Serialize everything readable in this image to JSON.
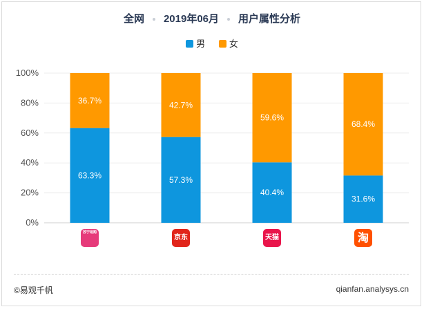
{
  "header": {
    "part1": "全网",
    "part2": "2019年06月",
    "part3": "用户属性分析"
  },
  "legend": [
    {
      "label": "男",
      "color": "#0e96de"
    },
    {
      "label": "女",
      "color": "#ff9900"
    }
  ],
  "chart_data": {
    "type": "bar",
    "stacked": true,
    "title": "全网 2019年06月 用户属性分析",
    "categories": [
      "苏宁易购",
      "京东",
      "天猫",
      "淘宝"
    ],
    "series": [
      {
        "name": "男",
        "values": [
          63.3,
          57.3,
          40.4,
          31.6
        ],
        "labels": [
          "63.3%",
          "57.3%",
          "40.4%",
          "31.6%"
        ],
        "color": "#0e96de"
      },
      {
        "name": "女",
        "values": [
          36.7,
          42.7,
          59.6,
          68.4
        ],
        "labels": [
          "36.7%",
          "42.7%",
          "59.6%",
          "68.4%"
        ],
        "color": "#ff9900"
      }
    ],
    "yticks": [
      "0%",
      "20%",
      "40%",
      "60%",
      "80%",
      "100%"
    ],
    "ylim": [
      0,
      100
    ],
    "grid": true,
    "legend_position": "top-center"
  },
  "icons": [
    {
      "name": "suning-app-icon",
      "text": "苏宁易购",
      "bg": "#e63a7a"
    },
    {
      "name": "jd-app-icon",
      "text": "京东",
      "bg": "#e1251b"
    },
    {
      "name": "tmall-app-icon",
      "text": "天猫",
      "bg": "#e9154b"
    },
    {
      "name": "taobao-app-icon",
      "text": "淘",
      "bg": "#ff5000"
    }
  ],
  "footer": {
    "source": "©易观千帆",
    "site": "qianfan.analysys.cn"
  }
}
